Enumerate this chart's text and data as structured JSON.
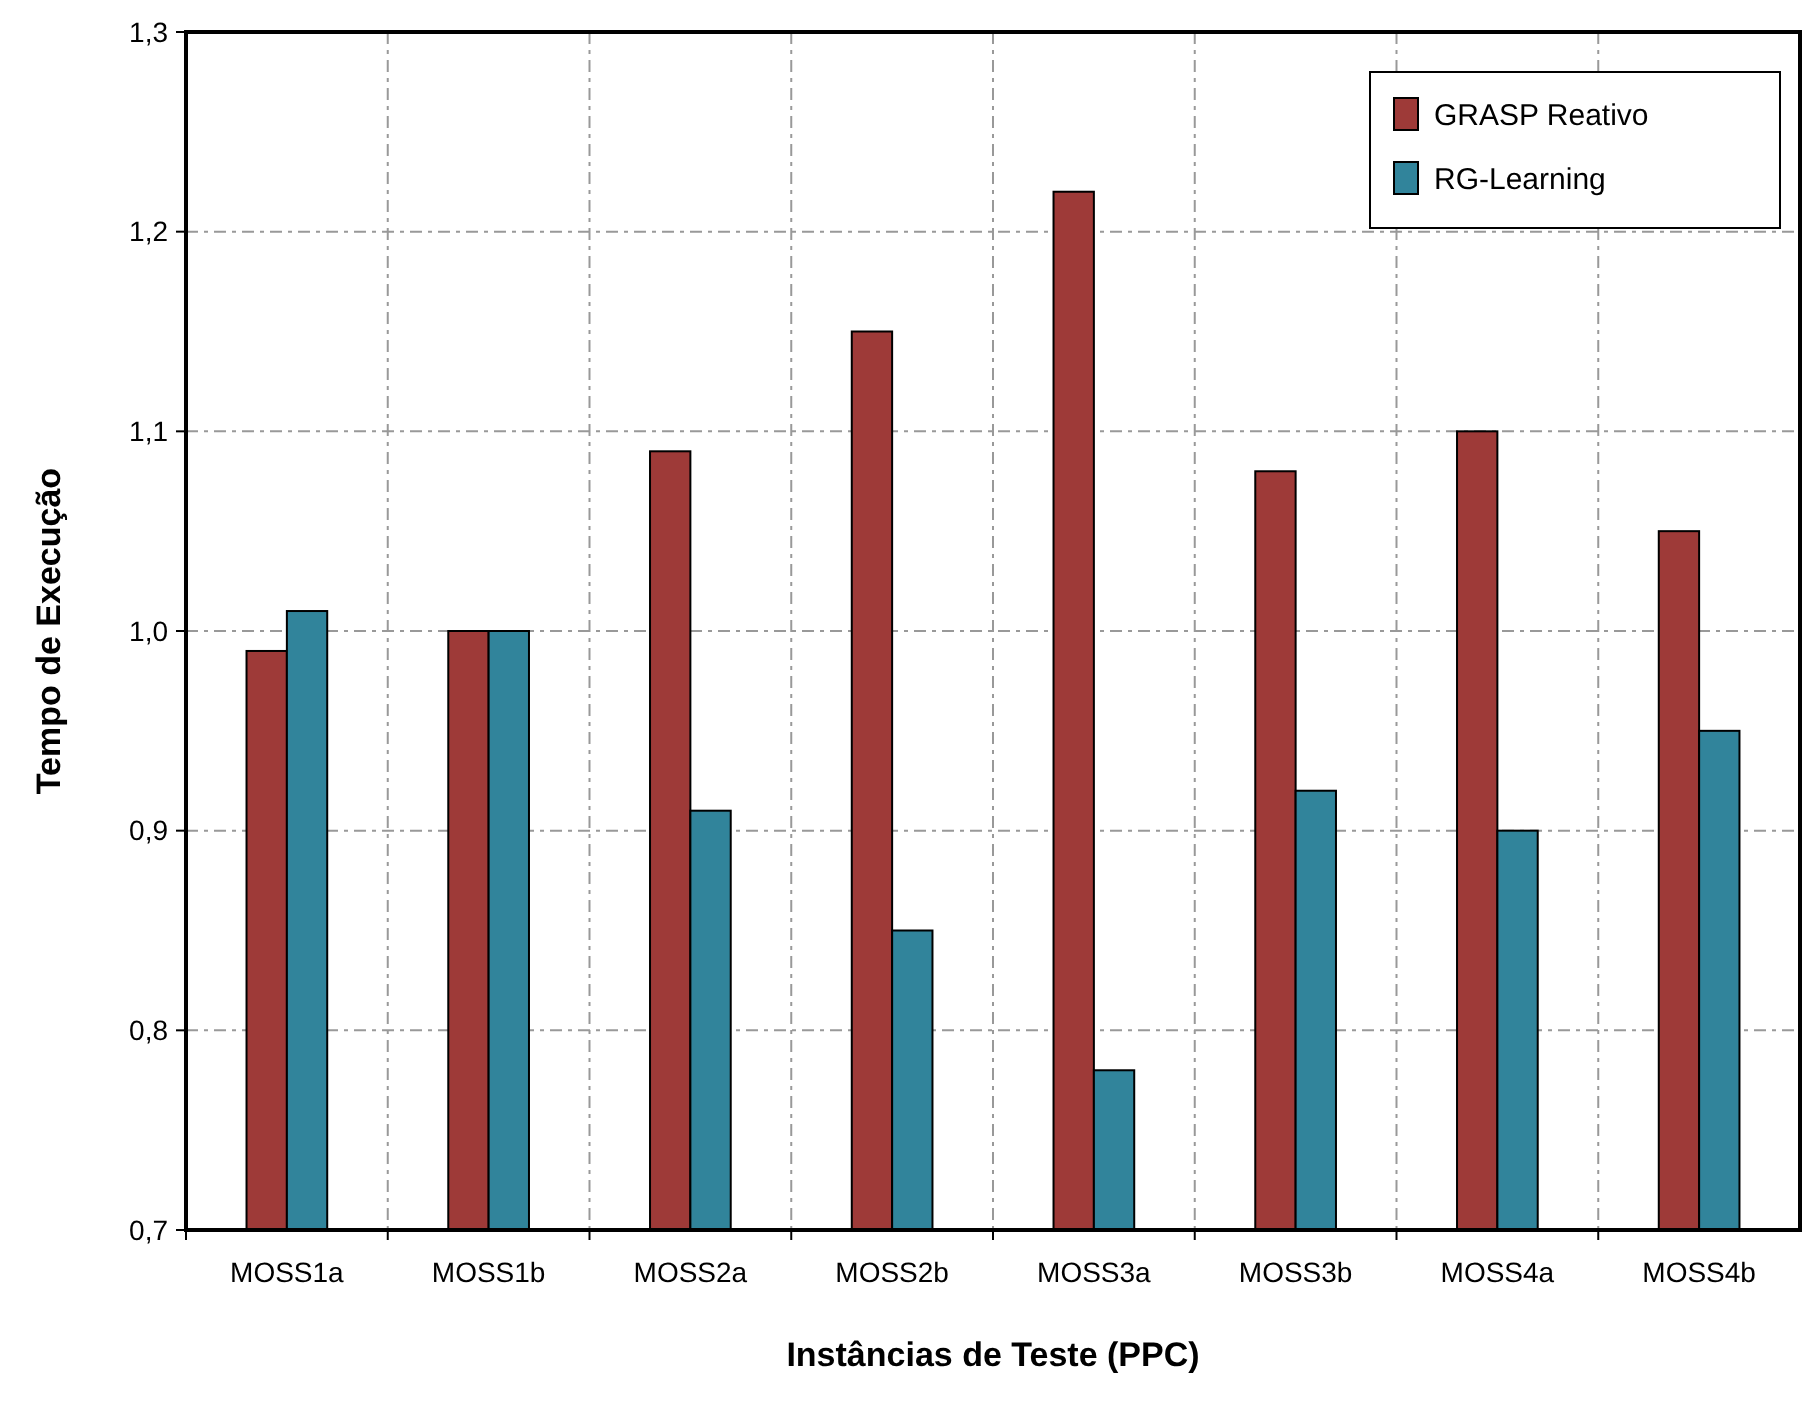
{
  "chart_data": {
    "type": "bar",
    "xlabel": "Instâncias de Teste (PPC)",
    "ylabel": "Tempo de Execução",
    "categories": [
      "MOSS1a",
      "MOSS1b",
      "MOSS2a",
      "MOSS2b",
      "MOSS3a",
      "MOSS3b",
      "MOSS4a",
      "MOSS4b"
    ],
    "series": [
      {
        "name": "GRASP Reativo",
        "color": "#9e3a38",
        "values": [
          0.99,
          1.0,
          1.09,
          1.15,
          1.22,
          1.08,
          1.1,
          1.05
        ]
      },
      {
        "name": "RG-Learning",
        "color": "#31849b",
        "values": [
          1.01,
          1.0,
          0.91,
          0.85,
          0.78,
          0.92,
          0.9,
          0.95
        ]
      }
    ],
    "ylim": [
      0.7,
      1.3
    ],
    "yticks": [
      {
        "value": 0.7,
        "label": "0,7"
      },
      {
        "value": 0.8,
        "label": "0,8"
      },
      {
        "value": 0.9,
        "label": "0,9"
      },
      {
        "value": 1.0,
        "label": "1,0"
      },
      {
        "value": 1.1,
        "label": "1,1"
      },
      {
        "value": 1.2,
        "label": "1,2"
      },
      {
        "value": 1.3,
        "label": "1,3"
      }
    ],
    "grid": true,
    "legend": "top right"
  }
}
